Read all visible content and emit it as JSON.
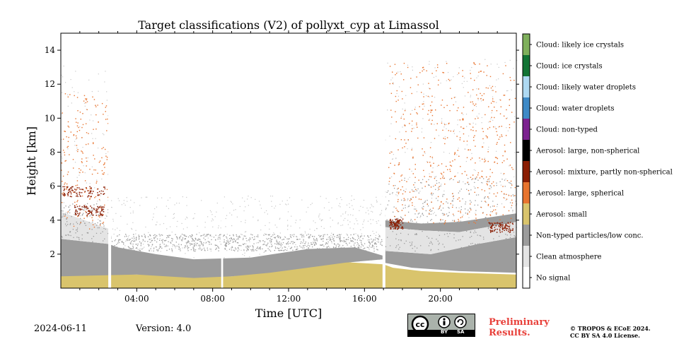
{
  "chart_data": {
    "type": "heatmap",
    "title": "Target classifications (V2) of pollyxt_cyp at Limassol",
    "xlabel": "Time [UTC]",
    "ylabel": "Height [km]",
    "xlim": [
      0,
      24
    ],
    "ylim": [
      0,
      15
    ],
    "x_ticks": [
      {
        "value": 4,
        "label": "04:00"
      },
      {
        "value": 8,
        "label": "08:00"
      },
      {
        "value": 12,
        "label": "12:00"
      },
      {
        "value": 16,
        "label": "16:00"
      },
      {
        "value": 20,
        "label": "20:00"
      }
    ],
    "y_ticks": [
      {
        "value": 2,
        "label": "2"
      },
      {
        "value": 4,
        "label": "4"
      },
      {
        "value": 6,
        "label": "6"
      },
      {
        "value": 8,
        "label": "8"
      },
      {
        "value": 10,
        "label": "10"
      },
      {
        "value": 12,
        "label": "12"
      },
      {
        "value": 14,
        "label": "14"
      }
    ],
    "colorbar": [
      {
        "label": "Cloud: likely ice crystals",
        "color": "#7fb05c"
      },
      {
        "label": "Cloud: ice crystals",
        "color": "#137435"
      },
      {
        "label": "Cloud: likely water droplets",
        "color": "#aed9f2"
      },
      {
        "label": "Cloud: water droplets",
        "color": "#3e8ac7"
      },
      {
        "label": "Cloud: non-typed",
        "color": "#7c2290"
      },
      {
        "label": "Aerosol: large, non-spherical",
        "color": "#000000"
      },
      {
        "label": "Aerosol: mixture, partly non-spherical",
        "color": "#8b1e04"
      },
      {
        "label": "Aerosol: large, spherical",
        "color": "#e8742f"
      },
      {
        "label": "Aerosol: small",
        "color": "#d9c46c"
      },
      {
        "label": "Non-typed particles/low conc.",
        "color": "#9c9c9c"
      },
      {
        "label": "Clean atmosphere",
        "color": "#e4e4e4"
      },
      {
        "label": "No signal",
        "color": "#ffffff"
      }
    ],
    "regions": [
      {
        "class": "Aerosol: small",
        "points": [
          [
            0,
            0
          ],
          [
            24,
            0
          ],
          [
            24,
            0.8
          ],
          [
            21,
            0.9
          ],
          [
            19,
            1.0
          ],
          [
            17.5,
            1.2
          ],
          [
            17,
            1.4
          ],
          [
            14,
            1.6
          ],
          [
            12,
            1.1
          ],
          [
            9,
            0.7
          ],
          [
            6,
            0.8
          ],
          [
            4,
            0.8
          ],
          [
            0,
            0.9
          ]
        ]
      },
      {
        "class": "Non-typed particles/low conc.",
        "points": [
          [
            0,
            0.7
          ],
          [
            4,
            0.8
          ],
          [
            7,
            0.6
          ],
          [
            9,
            0.7
          ],
          [
            11,
            0.9
          ],
          [
            13,
            1.2
          ],
          [
            15,
            1.5
          ],
          [
            17,
            1.7
          ],
          [
            17,
            1.5
          ],
          [
            18.5,
            1.2
          ],
          [
            21,
            1.0
          ],
          [
            24,
            0.9
          ],
          [
            24,
            3.0
          ],
          [
            22,
            2.6
          ],
          [
            19.5,
            2.0
          ],
          [
            17,
            2.2
          ],
          [
            17,
            1.9
          ],
          [
            15.5,
            2.4
          ],
          [
            13,
            2.3
          ],
          [
            10,
            1.8
          ],
          [
            7,
            1.7
          ],
          [
            5,
            2.0
          ],
          [
            3,
            2.4
          ],
          [
            2.5,
            2.6
          ],
          [
            0,
            2.9
          ]
        ]
      },
      {
        "class": "Non-typed particles/low conc.",
        "points": [
          [
            17,
            3.6
          ],
          [
            19,
            3.4
          ],
          [
            21,
            3.3
          ],
          [
            24,
            3.9
          ],
          [
            24,
            4.4
          ],
          [
            21,
            3.9
          ],
          [
            19,
            3.8
          ],
          [
            17,
            4.0
          ]
        ]
      },
      {
        "class": "Clean atmosphere",
        "points": [
          [
            0,
            2.9
          ],
          [
            2.5,
            2.6
          ],
          [
            2.5,
            3.5
          ],
          [
            0,
            4.5
          ]
        ]
      },
      {
        "class": "Clean atmosphere",
        "points": [
          [
            17,
            2.2
          ],
          [
            19.5,
            2.0
          ],
          [
            22,
            2.6
          ],
          [
            24,
            3.0
          ],
          [
            24,
            3.9
          ],
          [
            21,
            3.3
          ],
          [
            19,
            3.4
          ],
          [
            17,
            3.6
          ]
        ]
      }
    ],
    "particle_layers": [
      {
        "class": "Aerosol: mixture, partly non-spherical",
        "x": [
          0,
          2.3
        ],
        "height": 5.7
      },
      {
        "class": "Aerosol: mixture, partly non-spherical",
        "x": [
          0.7,
          2.3
        ],
        "height": 4.6
      },
      {
        "class": "Aerosol: mixture, partly non-spherical",
        "x": [
          17.3,
          18.0
        ],
        "height": 3.8
      },
      {
        "class": "Aerosol: mixture, partly non-spherical",
        "x": [
          22.5,
          23.8
        ],
        "height": 3.6
      }
    ],
    "no_signal_gaps": [
      [
        2.5,
        2.65
      ],
      [
        8.45,
        8.55
      ],
      [
        16.95,
        17.1
      ]
    ],
    "footer": {
      "date": "2024-06-11",
      "version": "Version: 4.0",
      "preliminary": [
        "Preliminary",
        "Results."
      ],
      "copyright": [
        "© TROPOS & ECoE 2024.",
        "CC BY SA 4.0 License."
      ],
      "cc_badge": [
        "cc",
        "BY",
        "SA"
      ]
    }
  }
}
